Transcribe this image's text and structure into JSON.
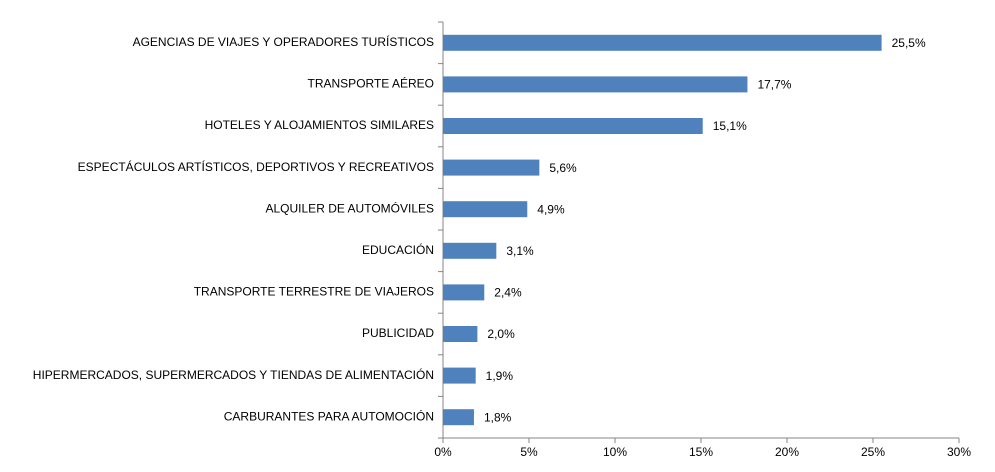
{
  "chart_data": {
    "type": "bar",
    "orientation": "horizontal",
    "categories": [
      "AGENCIAS DE VIAJES Y OPERADORES TURÍSTICOS",
      "TRANSPORTE AÉREO",
      "HOTELES  Y ALOJAMIENTOS SIMILARES",
      "ESPECTÁCULOS ARTÍSTICOS, DEPORTIVOS Y RECREATIVOS",
      "ALQUILER DE AUTOMÓVILES",
      "EDUCACIÓN",
      "TRANSPORTE TERRESTRE DE VIAJEROS",
      "PUBLICIDAD",
      "HIPERMERCADOS, SUPERMERCADOS Y TIENDAS DE ALIMENTACIÓN",
      "CARBURANTES PARA AUTOMOCIÓN"
    ],
    "values": [
      25.5,
      17.7,
      15.1,
      5.6,
      4.9,
      3.1,
      2.4,
      2.0,
      1.9,
      1.8
    ],
    "value_labels": [
      "25,5%",
      "17,7%",
      "15,1%",
      "5,6%",
      "4,9%",
      "3,1%",
      "2,4%",
      "2,0%",
      "1,9%",
      "1,8%"
    ],
    "color": "#4f81bd",
    "xlim": [
      0,
      30
    ],
    "xticks": [
      {
        "value": 0,
        "label": "0%"
      },
      {
        "value": 5,
        "label": "5%"
      },
      {
        "value": 10,
        "label": "10%"
      },
      {
        "value": 15,
        "label": "15%"
      },
      {
        "value": 20,
        "label": "20%"
      },
      {
        "value": 25,
        "label": "25%"
      },
      {
        "value": 30,
        "label": "30%"
      }
    ],
    "grid": false
  }
}
